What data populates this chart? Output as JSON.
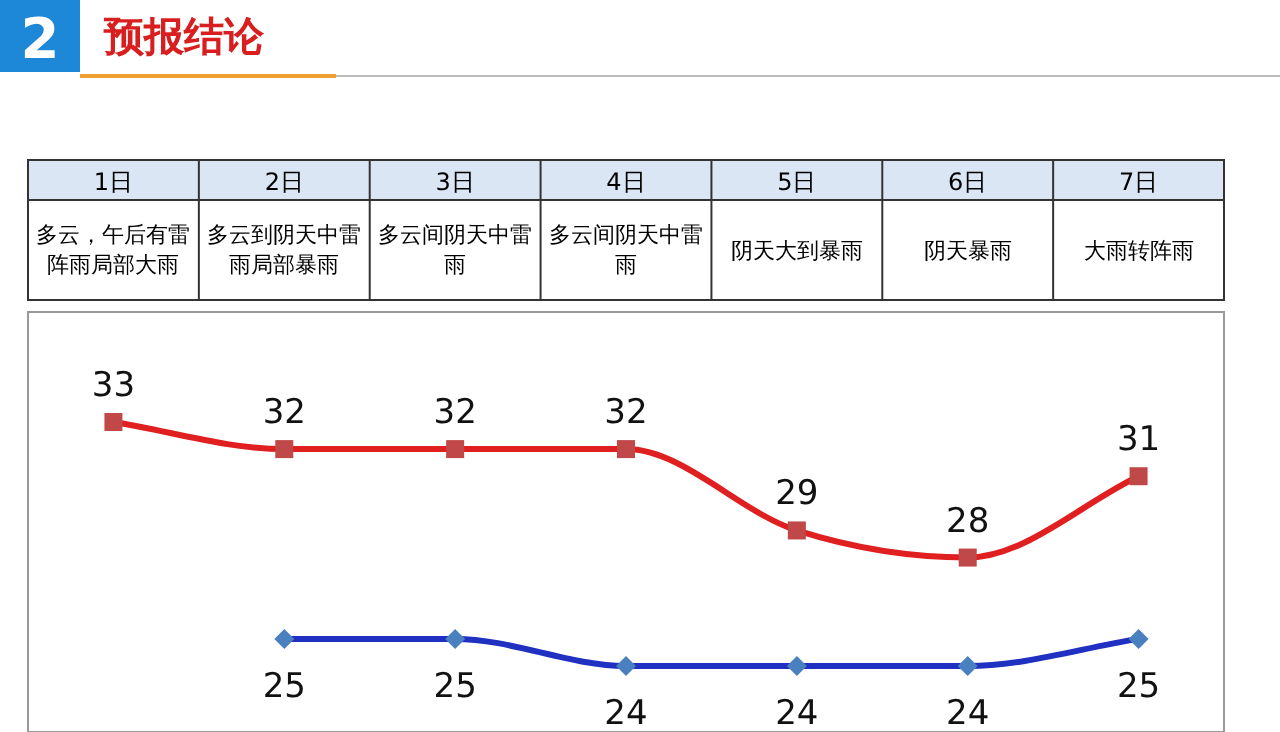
{
  "chart_data": {
    "type": "line",
    "title": "预报结论",
    "subtitle": "2",
    "categories": [
      "1日",
      "2日",
      "3日",
      "4日",
      "5日",
      "6日",
      "7日"
    ],
    "annotations": [
      "多云，午后有雷阵雨局部大雨",
      "多云到阴天中雷雨局部暴雨",
      "多云间阴天中雷雨",
      "多云间阴天中雷雨",
      "阴天大到暴雨",
      "阴天暴雨",
      "大雨转阵雨"
    ],
    "series": [
      {
        "color": "#e02020",
        "marker": "square",
        "values": [
          33,
          32,
          32,
          32,
          29,
          28,
          31
        ]
      },
      {
        "color": "#2030c0",
        "marker": "diamond",
        "values": [
          null,
          25,
          25,
          24,
          24,
          24,
          25
        ]
      }
    ],
    "data_labels": true
  }
}
